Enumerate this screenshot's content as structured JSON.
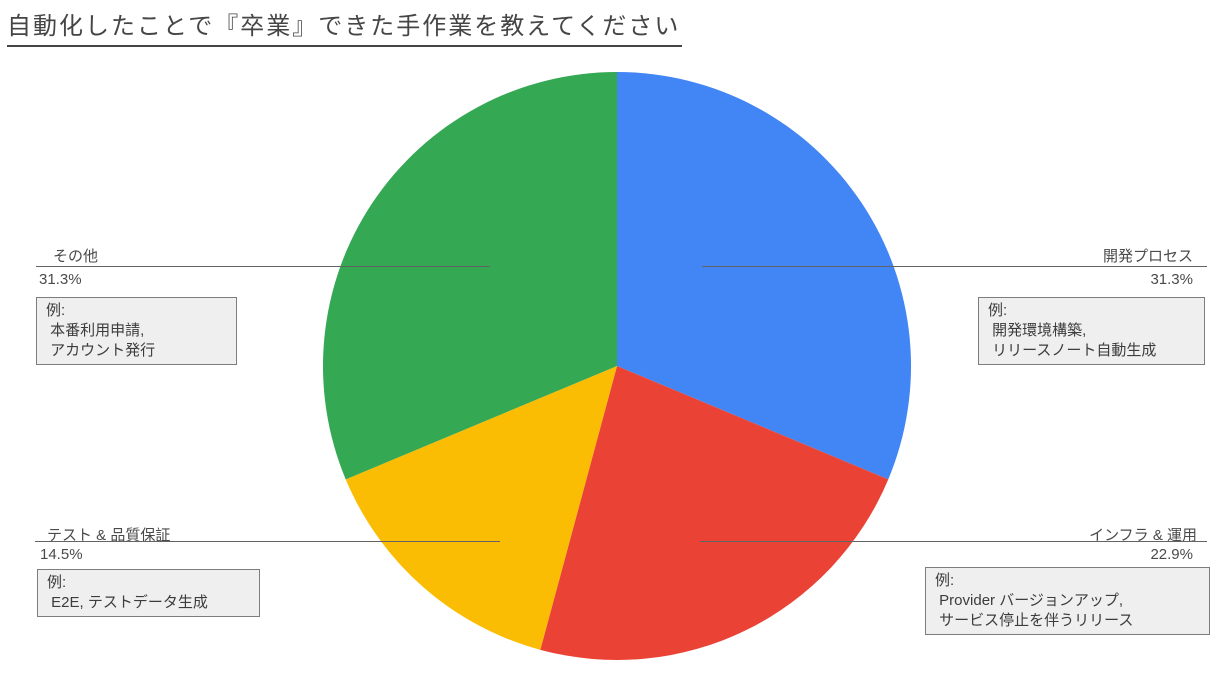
{
  "chart_data": {
    "type": "pie",
    "title": "自動化したことで『卒業』できた手作業を教えてください",
    "legend": "none",
    "labeling": "outside callout labels with leader lines (label above line, percent below)",
    "direction": "clockwise from top",
    "total": 100,
    "slices": [
      {
        "key": "development-process",
        "label": "開発プロセス",
        "value": 31.3,
        "percent_label": "31.3%",
        "color": "#4285F4",
        "example": "例:\n 開発環境構築,\n リリースノート自動生成"
      },
      {
        "key": "infra-operations",
        "label": "インフラ & 運用",
        "value": 22.9,
        "percent_label": "22.9%",
        "color": "#EA4335",
        "example": "例:\n Provider バージョンアップ,\n サービス停止を伴うリリース"
      },
      {
        "key": "test-qa",
        "label": "テスト & 品質保証",
        "value": 14.5,
        "percent_label": "14.5%",
        "color": "#FBBC04",
        "example": "例:\n E2E, テストデータ生成"
      },
      {
        "key": "others",
        "label": "その他",
        "value": 31.3,
        "percent_label": "31.3%",
        "color": "#34A853",
        "example": "例:\n 本番利用申請,\n アカウント発行"
      }
    ]
  }
}
